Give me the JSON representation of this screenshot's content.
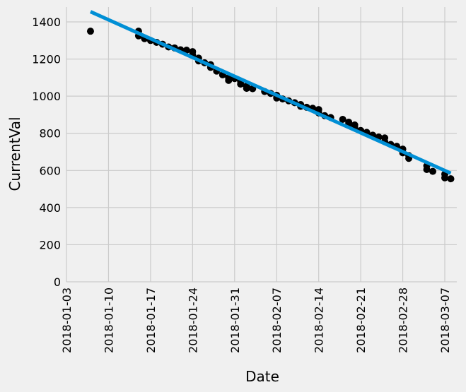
{
  "chart_data": {
    "type": "scatter",
    "xlabel": "Date",
    "ylabel": "CurrentVal",
    "xlim": [
      "2018-01-03",
      "2018-03-09"
    ],
    "ylim": [
      0,
      1480
    ],
    "x_ticks": [
      "2018-01-03",
      "2018-01-10",
      "2018-01-17",
      "2018-01-24",
      "2018-01-31",
      "2018-02-07",
      "2018-02-14",
      "2018-02-21",
      "2018-02-28",
      "2018-03-07"
    ],
    "y_ticks": [
      0,
      200,
      400,
      600,
      800,
      1000,
      1200,
      1400
    ],
    "grid": true,
    "colors": {
      "points": "#000000",
      "fit_line": "#008fd5",
      "background": "#f0f0f0",
      "grid": "#cbcbcb"
    },
    "series": [
      {
        "kind": "points",
        "points": [
          [
            "2018-01-07",
            1350
          ],
          [
            "2018-01-15",
            1350
          ],
          [
            "2018-01-15",
            1325
          ],
          [
            "2018-01-16",
            1310
          ],
          [
            "2018-01-17",
            1300
          ],
          [
            "2018-01-18",
            1290
          ],
          [
            "2018-01-19",
            1280
          ],
          [
            "2018-01-20",
            1265
          ],
          [
            "2018-01-21",
            1260
          ],
          [
            "2018-01-22",
            1250
          ],
          [
            "2018-01-23",
            1248
          ],
          [
            "2018-01-24",
            1240
          ],
          [
            "2018-01-24",
            1222
          ],
          [
            "2018-01-25",
            1205
          ],
          [
            "2018-01-25",
            1190
          ],
          [
            "2018-01-26",
            1180
          ],
          [
            "2018-01-27",
            1170
          ],
          [
            "2018-01-27",
            1155
          ],
          [
            "2018-01-28",
            1135
          ],
          [
            "2018-01-29",
            1115
          ],
          [
            "2018-01-30",
            1100
          ],
          [
            "2018-01-30",
            1085
          ],
          [
            "2018-01-31",
            1095
          ],
          [
            "2018-02-01",
            1080
          ],
          [
            "2018-02-01",
            1065
          ],
          [
            "2018-02-02",
            1055
          ],
          [
            "2018-02-02",
            1042
          ],
          [
            "2018-02-03",
            1040
          ],
          [
            "2018-02-05",
            1025
          ],
          [
            "2018-02-06",
            1015
          ],
          [
            "2018-02-07",
            1005
          ],
          [
            "2018-02-07",
            990
          ],
          [
            "2018-02-08",
            985
          ],
          [
            "2018-02-09",
            975
          ],
          [
            "2018-02-10",
            965
          ],
          [
            "2018-02-11",
            955
          ],
          [
            "2018-02-11",
            945
          ],
          [
            "2018-02-12",
            940
          ],
          [
            "2018-02-13",
            935
          ],
          [
            "2018-02-14",
            928
          ],
          [
            "2018-02-14",
            910
          ],
          [
            "2018-02-15",
            895
          ],
          [
            "2018-02-16",
            885
          ],
          [
            "2018-02-18",
            875
          ],
          [
            "2018-02-19",
            860
          ],
          [
            "2018-02-19",
            850
          ],
          [
            "2018-02-20",
            845
          ],
          [
            "2018-02-20",
            830
          ],
          [
            "2018-02-21",
            815
          ],
          [
            "2018-02-22",
            805
          ],
          [
            "2018-02-23",
            790
          ],
          [
            "2018-02-24",
            780
          ],
          [
            "2018-02-25",
            775
          ],
          [
            "2018-02-25",
            755
          ],
          [
            "2018-02-26",
            740
          ],
          [
            "2018-02-27",
            730
          ],
          [
            "2018-02-28",
            715
          ],
          [
            "2018-02-28",
            695
          ],
          [
            "2018-03-01",
            680
          ],
          [
            "2018-03-01",
            665
          ],
          [
            "2018-03-04",
            625
          ],
          [
            "2018-03-04",
            605
          ],
          [
            "2018-03-05",
            595
          ],
          [
            "2018-03-07",
            580
          ],
          [
            "2018-03-07",
            560
          ],
          [
            "2018-03-08",
            555
          ]
        ]
      },
      {
        "kind": "fit_line",
        "points": [
          [
            "2018-01-07",
            1455
          ],
          [
            "2018-03-08",
            585
          ]
        ]
      }
    ]
  }
}
